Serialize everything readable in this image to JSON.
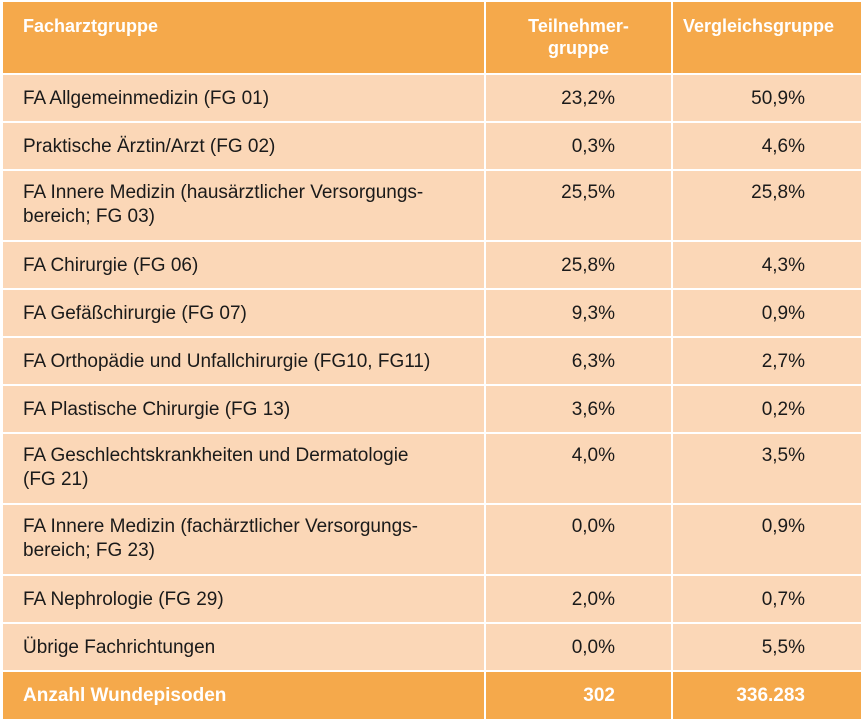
{
  "table": {
    "headers": {
      "col1": "Facharztgruppe",
      "col2_line1": "Teilnehmer-",
      "col2_line2": "gruppe",
      "col3": "Vergleichsgruppe"
    },
    "rows": [
      {
        "name_line1": "FA Allgemeinmedizin (FG 01)",
        "name_line2": "",
        "participants": "23,2%",
        "comparison": "50,9%"
      },
      {
        "name_line1": "Praktische Ärztin/Arzt (FG 02)",
        "name_line2": "",
        "participants": "0,3%",
        "comparison": "4,6%"
      },
      {
        "name_line1": "FA Innere Medizin (hausärztlicher Versorgungs-",
        "name_line2": "bereich; FG 03)",
        "participants": "25,5%",
        "comparison": "25,8%"
      },
      {
        "name_line1": "FA Chirurgie (FG 06)",
        "name_line2": "",
        "participants": "25,8%",
        "comparison": "4,3%"
      },
      {
        "name_line1": "FA Gefäßchirurgie (FG 07)",
        "name_line2": "",
        "participants": "9,3%",
        "comparison": "0,9%"
      },
      {
        "name_line1": "FA Orthopädie und Unfallchirurgie (FG10, FG11)",
        "name_line2": "",
        "participants": "6,3%",
        "comparison": "2,7%"
      },
      {
        "name_line1": "FA Plastische Chirurgie (FG 13)",
        "name_line2": "",
        "participants": "3,6%",
        "comparison": "0,2%"
      },
      {
        "name_line1": "FA Geschlechtskrankheiten und Dermatologie",
        "name_line2": "(FG 21)",
        "participants": "4,0%",
        "comparison": "3,5%"
      },
      {
        "name_line1": "FA Innere Medizin (fachärztlicher Versorgungs-",
        "name_line2": "bereich; FG 23)",
        "participants": "0,0%",
        "comparison": "0,9%"
      },
      {
        "name_line1": "FA Nephrologie (FG 29)",
        "name_line2": "",
        "participants": "2,0%",
        "comparison": "0,7%"
      },
      {
        "name_line1": "Übrige Fachrichtungen",
        "name_line2": "",
        "participants": "0,0%",
        "comparison": "5,5%"
      }
    ],
    "footer": {
      "label": "Anzahl Wundepisoden",
      "participants": "302",
      "comparison": "336.283"
    },
    "colors": {
      "header_bg": "#f5a94b",
      "row_bg": "#fbd7b7",
      "header_text": "#ffffff"
    }
  }
}
